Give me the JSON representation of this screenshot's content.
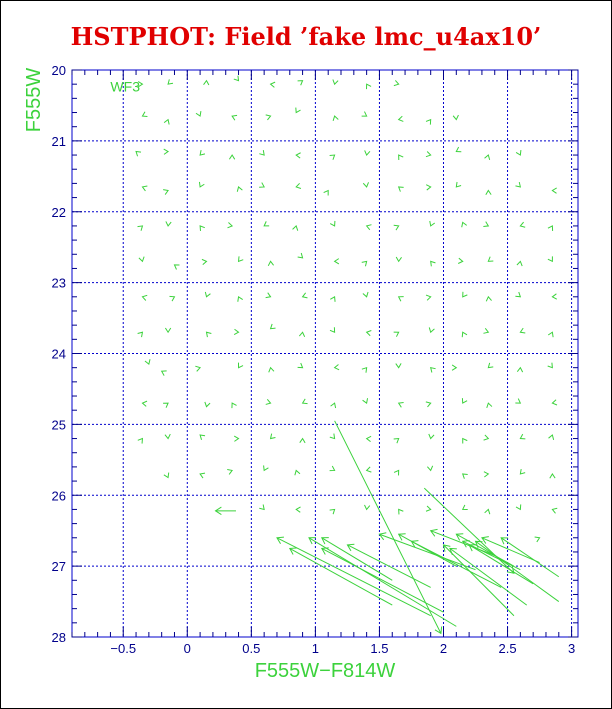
{
  "chart_data": {
    "type": "scatter",
    "title": "HSTPHOT: Field ’fake lmc_u4ax10’",
    "xlabel": "F555W−F814W",
    "ylabel": "F555W",
    "panel_label": "WF3",
    "xlim": [
      -0.9,
      3.05
    ],
    "ylim": [
      28,
      20
    ],
    "xticks": [
      -0.5,
      0,
      0.5,
      1,
      1.5,
      2,
      2.5,
      3
    ],
    "xtick_labels": [
      "−0.5",
      "0",
      "0.5",
      "1",
      "1.5",
      "2",
      "2.5",
      "3"
    ],
    "yticks": [
      20,
      21,
      22,
      23,
      24,
      25,
      26,
      27,
      28
    ],
    "ytick_labels": [
      "20",
      "21",
      "22",
      "23",
      "24",
      "25",
      "26",
      "27",
      "28"
    ],
    "grid": true,
    "colors": {
      "marks": "#3cd23c",
      "axes": "#00008b",
      "grid": "#0000cd",
      "title": "#e00000"
    },
    "points": [
      [
        -0.35,
        20.2
      ],
      [
        -0.15,
        20.2
      ],
      [
        0.15,
        20.15
      ],
      [
        0.4,
        20.15
      ],
      [
        0.65,
        20.2
      ],
      [
        0.9,
        20.15
      ],
      [
        1.15,
        20.2
      ],
      [
        1.4,
        20.2
      ],
      [
        1.65,
        20.2
      ],
      [
        -0.35,
        20.65
      ],
      [
        -0.15,
        20.7
      ],
      [
        0.1,
        20.65
      ],
      [
        0.35,
        20.65
      ],
      [
        0.65,
        20.65
      ],
      [
        0.85,
        20.6
      ],
      [
        1.15,
        20.65
      ],
      [
        1.4,
        20.65
      ],
      [
        1.65,
        20.7
      ],
      [
        1.9,
        20.7
      ],
      [
        2.1,
        20.7
      ],
      [
        -0.4,
        21.15
      ],
      [
        -0.15,
        21.15
      ],
      [
        0.1,
        21.2
      ],
      [
        0.35,
        21.2
      ],
      [
        0.6,
        21.2
      ],
      [
        0.85,
        21.2
      ],
      [
        1.15,
        21.2
      ],
      [
        1.4,
        21.2
      ],
      [
        1.65,
        21.2
      ],
      [
        1.9,
        21.2
      ],
      [
        2.1,
        21.15
      ],
      [
        2.35,
        21.2
      ],
      [
        2.6,
        21.2
      ],
      [
        -0.35,
        21.65
      ],
      [
        -0.15,
        21.7
      ],
      [
        0.1,
        21.65
      ],
      [
        0.4,
        21.65
      ],
      [
        0.6,
        21.65
      ],
      [
        0.85,
        21.65
      ],
      [
        1.1,
        21.7
      ],
      [
        1.4,
        21.65
      ],
      [
        1.65,
        21.65
      ],
      [
        1.9,
        21.65
      ],
      [
        2.1,
        21.65
      ],
      [
        2.35,
        21.7
      ],
      [
        2.6,
        21.65
      ],
      [
        2.85,
        21.7
      ],
      [
        -0.35,
        22.2
      ],
      [
        -0.15,
        22.2
      ],
      [
        0.1,
        22.2
      ],
      [
        0.35,
        22.2
      ],
      [
        0.6,
        22.2
      ],
      [
        0.85,
        22.2
      ],
      [
        1.15,
        22.2
      ],
      [
        1.4,
        22.2
      ],
      [
        1.65,
        22.2
      ],
      [
        1.9,
        22.2
      ],
      [
        2.15,
        22.15
      ],
      [
        2.35,
        22.2
      ],
      [
        2.6,
        22.2
      ],
      [
        2.85,
        22.2
      ],
      [
        -0.35,
        22.7
      ],
      [
        -0.1,
        22.75
      ],
      [
        0.15,
        22.7
      ],
      [
        0.4,
        22.7
      ],
      [
        0.65,
        22.7
      ],
      [
        0.9,
        22.65
      ],
      [
        1.15,
        22.7
      ],
      [
        1.4,
        22.7
      ],
      [
        1.65,
        22.7
      ],
      [
        1.9,
        22.7
      ],
      [
        2.15,
        22.7
      ],
      [
        2.35,
        22.7
      ],
      [
        2.6,
        22.7
      ],
      [
        2.85,
        22.7
      ],
      [
        -0.35,
        23.2
      ],
      [
        -0.1,
        23.2
      ],
      [
        0.15,
        23.2
      ],
      [
        0.4,
        23.2
      ],
      [
        0.65,
        23.2
      ],
      [
        0.9,
        23.2
      ],
      [
        1.15,
        23.2
      ],
      [
        1.4,
        23.2
      ],
      [
        1.65,
        23.2
      ],
      [
        1.9,
        23.2
      ],
      [
        2.15,
        23.2
      ],
      [
        2.35,
        23.2
      ],
      [
        2.6,
        23.2
      ],
      [
        2.85,
        23.2
      ],
      [
        -0.35,
        23.7
      ],
      [
        -0.15,
        23.7
      ],
      [
        0.15,
        23.7
      ],
      [
        0.4,
        23.7
      ],
      [
        0.65,
        23.65
      ],
      [
        0.9,
        23.7
      ],
      [
        1.15,
        23.7
      ],
      [
        1.4,
        23.7
      ],
      [
        1.65,
        23.7
      ],
      [
        1.9,
        23.7
      ],
      [
        2.15,
        23.7
      ],
      [
        2.35,
        23.7
      ],
      [
        2.6,
        23.7
      ],
      [
        2.85,
        23.7
      ],
      [
        -0.3,
        24.15
      ],
      [
        -0.2,
        24.25
      ],
      [
        0.1,
        24.2
      ],
      [
        0.4,
        24.2
      ],
      [
        0.65,
        24.2
      ],
      [
        0.9,
        24.2
      ],
      [
        1.15,
        24.2
      ],
      [
        1.4,
        24.2
      ],
      [
        1.65,
        24.2
      ],
      [
        1.9,
        24.2
      ],
      [
        2.1,
        24.2
      ],
      [
        2.35,
        24.2
      ],
      [
        2.6,
        24.2
      ],
      [
        2.85,
        24.2
      ],
      [
        -0.35,
        24.7
      ],
      [
        -0.15,
        24.7
      ],
      [
        0.15,
        24.75
      ],
      [
        0.35,
        24.7
      ],
      [
        0.65,
        24.7
      ],
      [
        0.9,
        24.7
      ],
      [
        1.15,
        24.7
      ],
      [
        1.4,
        24.7
      ],
      [
        1.65,
        24.7
      ],
      [
        1.9,
        24.7
      ],
      [
        2.15,
        24.7
      ],
      [
        2.35,
        24.7
      ],
      [
        2.6,
        24.7
      ],
      [
        2.85,
        24.7
      ],
      [
        -0.35,
        25.2
      ],
      [
        -0.15,
        25.2
      ],
      [
        0.1,
        25.15
      ],
      [
        0.4,
        25.2
      ],
      [
        0.65,
        25.2
      ],
      [
        0.9,
        25.2
      ],
      [
        1.15,
        25.2
      ],
      [
        1.4,
        25.2
      ],
      [
        1.65,
        25.2
      ],
      [
        1.9,
        25.2
      ],
      [
        2.15,
        25.2
      ],
      [
        2.35,
        25.2
      ],
      [
        2.6,
        25.2
      ],
      [
        2.85,
        25.15
      ],
      [
        -0.15,
        25.75
      ],
      [
        0.1,
        25.7
      ],
      [
        0.35,
        25.65
      ],
      [
        0.6,
        25.65
      ],
      [
        0.85,
        25.65
      ],
      [
        1.15,
        25.65
      ],
      [
        1.4,
        25.65
      ],
      [
        1.65,
        25.65
      ],
      [
        1.9,
        25.65
      ],
      [
        2.15,
        25.7
      ],
      [
        2.35,
        25.7
      ],
      [
        2.6,
        25.7
      ],
      [
        2.85,
        25.7
      ],
      [
        0.6,
        26.2
      ],
      [
        0.85,
        26.2
      ],
      [
        1.15,
        26.2
      ],
      [
        1.4,
        26.2
      ],
      [
        1.65,
        26.2
      ],
      [
        1.9,
        26.2
      ],
      [
        2.15,
        26.2
      ],
      [
        2.35,
        26.2
      ],
      [
        2.6,
        26.2
      ],
      [
        2.85,
        26.2
      ],
      [
        2.75,
        26.6
      ]
    ],
    "vectors": [
      [
        0.38,
        26.22,
        0.22,
        26.22
      ],
      [
        1.15,
        24.95,
        1.98,
        27.95
      ],
      [
        1.85,
        25.9,
        2.55,
        27.1
      ],
      [
        1.9,
        27.7,
        0.7,
        26.6
      ],
      [
        2.1,
        27.85,
        0.95,
        26.6
      ],
      [
        2.0,
        27.65,
        1.05,
        26.75
      ],
      [
        1.6,
        27.55,
        0.8,
        26.75
      ],
      [
        1.6,
        27.2,
        1.05,
        26.6
      ],
      [
        1.9,
        27.3,
        1.25,
        26.7
      ],
      [
        2.25,
        27.05,
        1.5,
        26.55
      ],
      [
        2.45,
        27.3,
        1.75,
        26.65
      ],
      [
        2.55,
        27.7,
        2.0,
        26.7
      ],
      [
        2.65,
        27.55,
        2.05,
        26.75
      ],
      [
        2.7,
        27.25,
        2.2,
        26.7
      ],
      [
        2.9,
        27.5,
        2.25,
        26.65
      ],
      [
        2.75,
        26.95,
        2.3,
        26.6
      ],
      [
        2.9,
        27.15,
        2.45,
        26.6
      ],
      [
        2.4,
        26.85,
        1.9,
        26.5
      ],
      [
        2.55,
        27.0,
        2.1,
        26.55
      ],
      [
        2.1,
        27.0,
        1.65,
        26.55
      ],
      [
        2.6,
        27.05,
        2.15,
        26.65
      ]
    ]
  }
}
